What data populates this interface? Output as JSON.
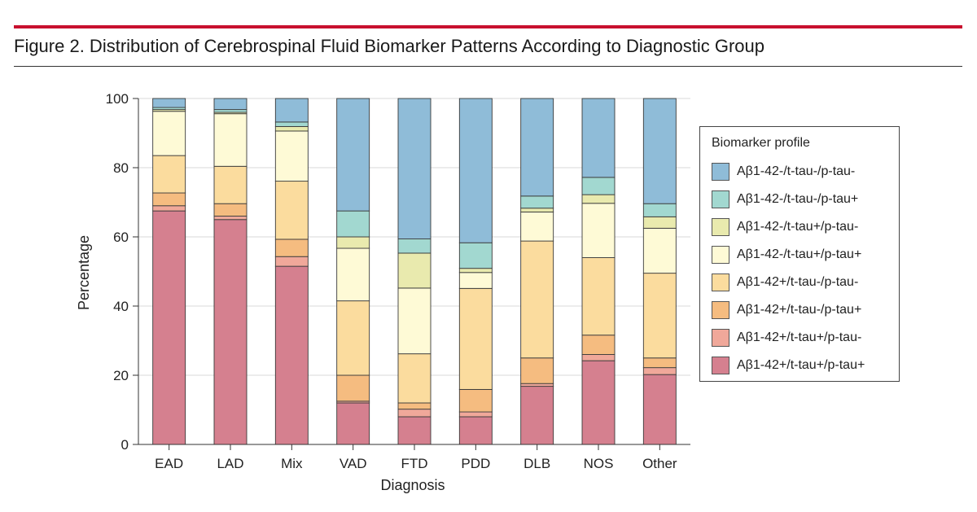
{
  "figure": {
    "title": "Figure 2. Distribution of Cerebrospinal Fluid Biomarker Patterns According to Diagnostic Group"
  },
  "colors": {
    "accent_rule": "#c8102e"
  },
  "chart_data": {
    "type": "bar",
    "stacked": true,
    "categories": [
      "EAD",
      "LAD",
      "Mix",
      "VAD",
      "FTD",
      "PDD",
      "DLB",
      "NOS",
      "Other"
    ],
    "xlabel": "Diagnosis",
    "ylabel": "Percentage",
    "ylim": [
      0,
      100
    ],
    "yticks": [
      0,
      20,
      40,
      60,
      80,
      100
    ],
    "grid": true,
    "legend": {
      "title": "Biomarker profile",
      "placement": "right"
    },
    "series": [
      {
        "name": "Aβ1-42+/t-tau+/p-tau+",
        "color": "#d5808f",
        "values": [
          67.5,
          65.0,
          51.5,
          12.0,
          8.0,
          8.0,
          16.8,
          24.2,
          20.2
        ]
      },
      {
        "name": "Aβ1-42+/t-tau+/p-tau-",
        "color": "#f0a89a",
        "values": [
          1.5,
          1.0,
          2.8,
          0.5,
          2.2,
          1.4,
          0.8,
          1.8,
          2.0
        ]
      },
      {
        "name": "Aβ1-42+/t-tau-/p-tau+",
        "color": "#f5bc80",
        "values": [
          3.7,
          3.6,
          5.0,
          7.5,
          1.8,
          6.5,
          7.4,
          5.6,
          2.8
        ]
      },
      {
        "name": "Aβ1-42+/t-tau-/p-tau-",
        "color": "#fbdc9e",
        "values": [
          10.8,
          10.8,
          16.8,
          21.5,
          14.2,
          29.2,
          33.8,
          22.4,
          24.5
        ]
      },
      {
        "name": "Aβ1-42-/t-tau+/p-tau+",
        "color": "#fefad6",
        "values": [
          12.8,
          15.2,
          14.5,
          15.2,
          19.0,
          4.6,
          8.4,
          15.7,
          13.0
        ]
      },
      {
        "name": "Aβ1-42-/t-tau+/p-tau-",
        "color": "#e9eaae",
        "values": [
          0.5,
          0.4,
          1.3,
          3.3,
          10.1,
          1.2,
          1.1,
          2.5,
          3.3
        ]
      },
      {
        "name": "Aβ1-42-/t-tau-/p-tau+",
        "color": "#a2d8d0",
        "values": [
          0.6,
          0.8,
          1.3,
          7.5,
          4.1,
          7.4,
          3.5,
          5.0,
          3.8
        ]
      },
      {
        "name": "Aβ1-42-/t-tau-/p-tau-",
        "color": "#8fbcd8",
        "values": [
          2.6,
          3.2,
          6.8,
          32.5,
          40.6,
          41.7,
          28.2,
          22.8,
          30.4
        ]
      }
    ]
  }
}
